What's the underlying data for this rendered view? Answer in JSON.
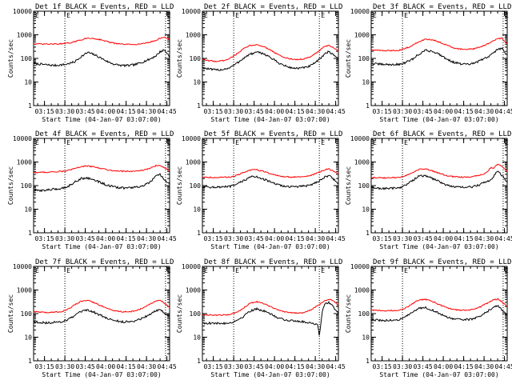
{
  "figure": {
    "x_ticks": [
      "03:15",
      "03:30",
      "03:45",
      "04:00",
      "04:15",
      "04:30",
      "04:45"
    ],
    "y_ticks": [
      "1",
      "10",
      "100",
      "1000",
      "10000"
    ],
    "ylabel": "Counts/sec",
    "xlabel": "Start Time (04-Jan-07 03:07:00)",
    "marker_labels": [
      "E",
      "E"
    ],
    "colors": {
      "events": "#000000",
      "lld": "#ff0000",
      "axes": "#000000"
    }
  },
  "chart_data": [
    {
      "type": "line",
      "title": "Det 1f BLACK = Events, RED = LLD",
      "x_range_min": [
        0,
        100
      ],
      "y_scale": "log",
      "ylim": [
        1,
        10000
      ],
      "markers_min": [
        23,
        97
      ],
      "series": [
        {
          "name": "Events",
          "x": [
            0,
            8,
            15,
            23,
            30,
            35,
            40,
            45,
            50,
            55,
            60,
            65,
            70,
            75,
            80,
            85,
            90,
            93,
            96,
            98,
            100
          ],
          "y": [
            60,
            55,
            50,
            55,
            70,
            120,
            180,
            140,
            100,
            70,
            55,
            50,
            50,
            55,
            70,
            90,
            130,
            190,
            230,
            170,
            120
          ]
        },
        {
          "name": "LLD",
          "x": [
            0,
            8,
            15,
            23,
            30,
            35,
            40,
            45,
            50,
            55,
            60,
            65,
            70,
            75,
            80,
            85,
            90,
            93,
            96,
            98,
            100
          ],
          "y": [
            410,
            400,
            405,
            420,
            500,
            620,
            720,
            690,
            610,
            500,
            430,
            400,
            390,
            395,
            420,
            480,
            580,
            720,
            800,
            720,
            600
          ]
        }
      ]
    },
    {
      "type": "line",
      "title": "Det 2f BLACK = Events, RED = LLD",
      "x_range_min": [
        0,
        100
      ],
      "y_scale": "log",
      "ylim": [
        1,
        10000
      ],
      "markers_min": [
        23,
        86
      ],
      "series": [
        {
          "name": "Events",
          "x": [
            0,
            5,
            10,
            15,
            20,
            25,
            30,
            35,
            40,
            45,
            50,
            55,
            60,
            65,
            70,
            75,
            80,
            85,
            90,
            93,
            96,
            100
          ],
          "y": [
            40,
            35,
            32,
            34,
            40,
            60,
            100,
            150,
            180,
            160,
            110,
            70,
            50,
            40,
            38,
            40,
            50,
            80,
            160,
            190,
            150,
            100
          ]
        },
        {
          "name": "LLD",
          "x": [
            0,
            5,
            10,
            15,
            20,
            25,
            30,
            35,
            40,
            45,
            50,
            55,
            60,
            65,
            70,
            75,
            80,
            85,
            90,
            93,
            96,
            100
          ],
          "y": [
            90,
            80,
            75,
            80,
            100,
            150,
            250,
            350,
            380,
            320,
            230,
            150,
            110,
            95,
            90,
            95,
            120,
            190,
            320,
            350,
            300,
            200
          ]
        }
      ]
    },
    {
      "type": "line",
      "title": "Det 3f BLACK = Events, RED = LLD",
      "x_range_min": [
        0,
        100
      ],
      "y_scale": "log",
      "ylim": [
        1,
        10000
      ],
      "markers_min": [
        23,
        97
      ],
      "series": [
        {
          "name": "Events",
          "x": [
            0,
            10,
            20,
            25,
            30,
            35,
            40,
            45,
            50,
            55,
            60,
            65,
            70,
            75,
            80,
            85,
            90,
            93,
            96,
            100
          ],
          "y": [
            60,
            55,
            55,
            65,
            90,
            150,
            220,
            200,
            150,
            100,
            70,
            60,
            55,
            60,
            80,
            110,
            170,
            240,
            280,
            130
          ]
        },
        {
          "name": "LLD",
          "x": [
            0,
            10,
            20,
            25,
            30,
            35,
            40,
            45,
            50,
            55,
            60,
            65,
            70,
            75,
            80,
            85,
            90,
            93,
            96,
            100
          ],
          "y": [
            230,
            210,
            220,
            260,
            350,
            500,
            650,
            620,
            500,
            380,
            290,
            250,
            240,
            250,
            300,
            400,
            550,
            680,
            700,
            400
          ]
        }
      ]
    },
    {
      "type": "line",
      "title": "Det 4f BLACK = Events, RED = LLD",
      "x_range_min": [
        0,
        100
      ],
      "y_scale": "log",
      "ylim": [
        1,
        10000
      ],
      "markers_min": [
        23,
        97
      ],
      "series": [
        {
          "name": "Events",
          "x": [
            0,
            10,
            20,
            25,
            30,
            35,
            40,
            45,
            50,
            55,
            60,
            65,
            70,
            75,
            80,
            85,
            90,
            93,
            96,
            100
          ],
          "y": [
            60,
            65,
            75,
            90,
            140,
            200,
            210,
            170,
            130,
            100,
            85,
            80,
            80,
            85,
            95,
            130,
            250,
            290,
            180,
            110
          ]
        },
        {
          "name": "LLD",
          "x": [
            0,
            10,
            20,
            25,
            30,
            35,
            40,
            45,
            50,
            55,
            60,
            65,
            70,
            75,
            80,
            85,
            90,
            93,
            96,
            100
          ],
          "y": [
            360,
            370,
            400,
            430,
            520,
            650,
            680,
            610,
            530,
            460,
            420,
            410,
            400,
            410,
            440,
            520,
            700,
            720,
            580,
            430
          ]
        }
      ]
    },
    {
      "type": "line",
      "title": "Det 5f BLACK = Events, RED = LLD",
      "x_range_min": [
        0,
        100
      ],
      "y_scale": "log",
      "ylim": [
        1,
        10000
      ],
      "markers_min": [
        23,
        86
      ],
      "series": [
        {
          "name": "Events",
          "x": [
            0,
            10,
            20,
            25,
            30,
            35,
            40,
            45,
            50,
            55,
            60,
            65,
            70,
            75,
            80,
            85,
            90,
            93,
            96,
            100
          ],
          "y": [
            90,
            85,
            90,
            110,
            160,
            230,
            240,
            190,
            140,
            110,
            95,
            90,
            90,
            95,
            110,
            150,
            230,
            260,
            200,
            120
          ]
        },
        {
          "name": "LLD",
          "x": [
            0,
            10,
            20,
            25,
            30,
            35,
            40,
            45,
            50,
            55,
            60,
            65,
            70,
            75,
            80,
            85,
            90,
            93,
            96,
            100
          ],
          "y": [
            230,
            220,
            230,
            270,
            350,
            450,
            470,
            400,
            320,
            270,
            240,
            230,
            230,
            240,
            270,
            350,
            470,
            500,
            430,
            300
          ]
        }
      ]
    },
    {
      "type": "line",
      "title": "Det 6f BLACK = Events, RED = LLD",
      "x_range_min": [
        0,
        100
      ],
      "y_scale": "log",
      "ylim": [
        1,
        10000
      ],
      "markers_min": [
        23,
        97
      ],
      "series": [
        {
          "name": "Events",
          "x": [
            0,
            10,
            20,
            25,
            30,
            35,
            40,
            45,
            50,
            55,
            60,
            65,
            70,
            75,
            80,
            85,
            88,
            90,
            93,
            96,
            100
          ],
          "y": [
            80,
            75,
            80,
            100,
            160,
            250,
            260,
            200,
            150,
            110,
            90,
            85,
            85,
            90,
            110,
            150,
            180,
            250,
            420,
            280,
            140
          ]
        },
        {
          "name": "LLD",
          "x": [
            0,
            10,
            20,
            25,
            30,
            35,
            40,
            45,
            50,
            55,
            60,
            65,
            70,
            75,
            80,
            85,
            88,
            90,
            93,
            96,
            100
          ],
          "y": [
            220,
            210,
            220,
            260,
            350,
            480,
            500,
            420,
            330,
            270,
            240,
            230,
            230,
            240,
            280,
            350,
            600,
            550,
            800,
            650,
            400
          ]
        }
      ]
    },
    {
      "type": "line",
      "title": "Det 7f BLACK = Events, RED = LLD",
      "x_range_min": [
        0,
        100
      ],
      "y_scale": "log",
      "ylim": [
        1,
        10000
      ],
      "markers_min": [
        23,
        97
      ],
      "series": [
        {
          "name": "Events",
          "x": [
            0,
            10,
            20,
            25,
            30,
            35,
            40,
            45,
            50,
            55,
            60,
            65,
            70,
            75,
            80,
            85,
            90,
            93,
            96,
            100
          ],
          "y": [
            45,
            40,
            45,
            55,
            80,
            120,
            140,
            110,
            80,
            60,
            50,
            45,
            45,
            50,
            65,
            90,
            130,
            160,
            110,
            70
          ]
        },
        {
          "name": "LLD",
          "x": [
            0,
            10,
            20,
            25,
            30,
            35,
            40,
            45,
            50,
            55,
            60,
            65,
            70,
            75,
            80,
            85,
            90,
            93,
            96,
            100
          ],
          "y": [
            120,
            110,
            120,
            150,
            230,
            330,
            350,
            290,
            210,
            160,
            130,
            120,
            120,
            130,
            170,
            240,
            340,
            380,
            280,
            180
          ]
        }
      ]
    },
    {
      "type": "line",
      "title": "Det 8f BLACK = Events, RED = LLD",
      "x_range_min": [
        0,
        100
      ],
      "y_scale": "log",
      "ylim": [
        1,
        10000
      ],
      "markers_min": [
        23,
        86
      ],
      "series": [
        {
          "name": "Events",
          "x": [
            0,
            10,
            20,
            25,
            30,
            35,
            40,
            45,
            50,
            55,
            60,
            65,
            70,
            75,
            80,
            85,
            86,
            88,
            90,
            93,
            96,
            100
          ],
          "y": [
            40,
            38,
            40,
            50,
            75,
            130,
            160,
            130,
            95,
            70,
            55,
            50,
            48,
            45,
            40,
            35,
            10,
            120,
            250,
            300,
            200,
            100
          ]
        },
        {
          "name": "LLD",
          "x": [
            0,
            10,
            20,
            25,
            30,
            35,
            40,
            45,
            50,
            55,
            60,
            65,
            70,
            75,
            80,
            85,
            90,
            93,
            96,
            100
          ],
          "y": [
            90,
            85,
            90,
            110,
            170,
            280,
            320,
            270,
            200,
            150,
            120,
            110,
            105,
            110,
            150,
            220,
            350,
            420,
            350,
            220
          ]
        }
      ]
    },
    {
      "type": "line",
      "title": "Det 9f BLACK = Events, RED = LLD",
      "x_range_min": [
        0,
        100
      ],
      "y_scale": "log",
      "ylim": [
        1,
        10000
      ],
      "markers_min": [
        23,
        97
      ],
      "series": [
        {
          "name": "Events",
          "x": [
            0,
            10,
            20,
            25,
            30,
            35,
            40,
            45,
            50,
            55,
            60,
            65,
            70,
            75,
            80,
            85,
            90,
            93,
            96,
            100
          ],
          "y": [
            55,
            50,
            55,
            70,
            110,
            170,
            180,
            140,
            100,
            75,
            60,
            55,
            55,
            60,
            80,
            120,
            180,
            220,
            150,
            90
          ]
        },
        {
          "name": "LLD",
          "x": [
            0,
            10,
            20,
            25,
            30,
            35,
            40,
            45,
            50,
            55,
            60,
            65,
            70,
            75,
            80,
            85,
            90,
            93,
            96,
            100
          ],
          "y": [
            140,
            130,
            140,
            170,
            260,
            380,
            400,
            330,
            240,
            180,
            150,
            140,
            140,
            150,
            190,
            270,
            380,
            420,
            320,
            200
          ]
        }
      ]
    }
  ]
}
